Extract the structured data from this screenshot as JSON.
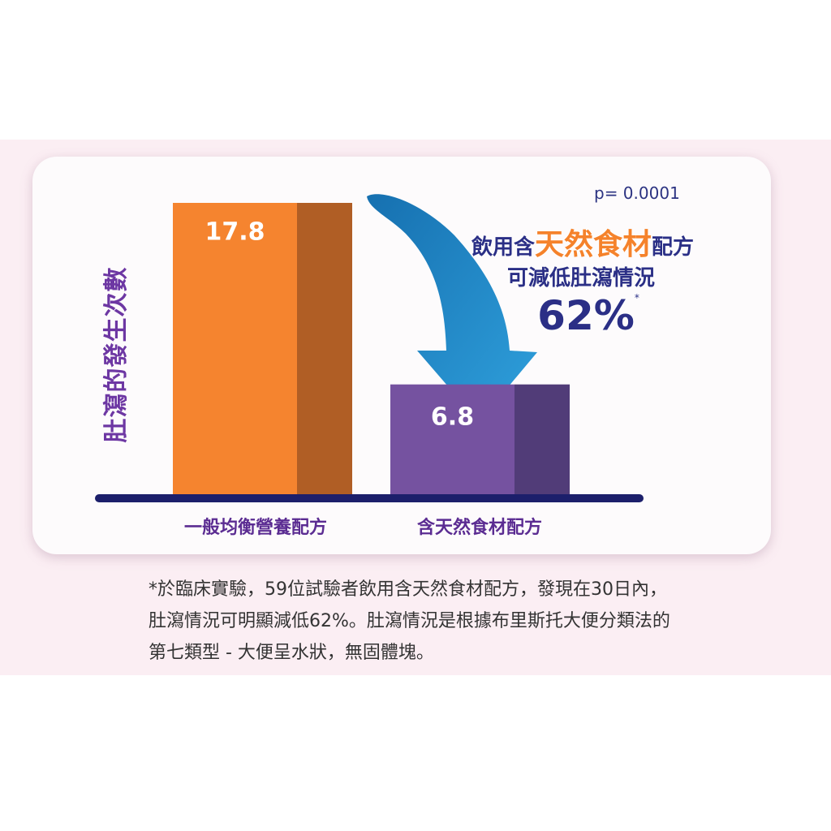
{
  "chart_data": {
    "type": "bar",
    "ylabel": "肚瀉的發生次數",
    "categories": [
      "一般均衡營養配方",
      "含天然食材配方"
    ],
    "values": [
      17.8,
      6.8
    ],
    "value_labels": [
      "17.8",
      "6.8"
    ],
    "ylim": [
      0,
      17.8
    ],
    "grid": false,
    "colors": {
      "bar1": "#f5842f",
      "bar1_side": "#b05e25",
      "bar2": "#7552a0",
      "bar2_side": "#513c78",
      "baseline": "#1c1f6b",
      "arrow": "#2088c8"
    },
    "annotations": {
      "p_value": "p= 0.0001",
      "line1_pre": "飲用含",
      "line1_highlight": "天然食材",
      "line1_post": "配方",
      "line2": "可減低肚瀉情況",
      "reduction": "62%",
      "asterisk": "*"
    }
  },
  "footnote": [
    "*於臨床實驗，59位試驗者飲用含天然食材配方，發現在30日內，",
    "肚瀉情況可明顯減低62%。肚瀉情況是根據布里斯托大便分類法的",
    "第七類型 - 大便呈水狀，無固體塊。"
  ]
}
